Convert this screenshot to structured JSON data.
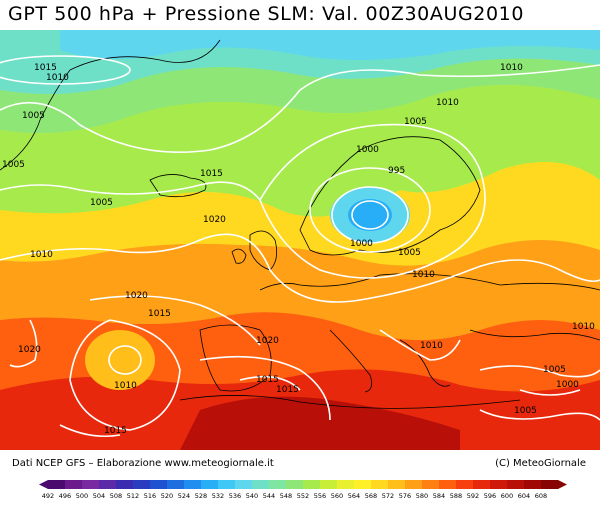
{
  "title": "GPT 500 hPa + Pressione SLM: Val. 00Z30AUG2010",
  "footer": {
    "left": "Dati NCEP GFS – Elaborazione www.meteogiornale.it",
    "right": "(C) MeteoGiornale"
  },
  "isobar_labels": [
    "1015",
    "1010",
    "1005",
    "1005",
    "1015",
    "1005",
    "1020",
    "1010",
    "1010",
    "1010",
    "1005",
    "1000",
    "995",
    "1000",
    "1005",
    "1010",
    "1020",
    "1015",
    "1020",
    "1010",
    "1020",
    "1015",
    "1015",
    "1010",
    "1010",
    "1005",
    "1000",
    "1005",
    "1015"
  ],
  "colorbar": {
    "ticks": [
      "492",
      "496",
      "500",
      "504",
      "508",
      "512",
      "516",
      "520",
      "524",
      "528",
      "532",
      "536",
      "540",
      "544",
      "548",
      "552",
      "556",
      "560",
      "564",
      "568",
      "572",
      "576",
      "580",
      "584",
      "588",
      "592",
      "596",
      "600",
      "604",
      "608"
    ],
    "colors": [
      "#4b0b6e",
      "#6a1a8a",
      "#7a2aa0",
      "#5b2aa8",
      "#3a2cb0",
      "#2a3cc0",
      "#1f52d0",
      "#1f6ee0",
      "#1f8ef0",
      "#27aef6",
      "#3fc8f6",
      "#5ed6ee",
      "#6fe0c8",
      "#7ee6a0",
      "#8ee676",
      "#a6ea4c",
      "#c8ee38",
      "#e8f030",
      "#fff02a",
      "#ffd820",
      "#ffbe1a",
      "#ffa016",
      "#ff8012",
      "#ff6010",
      "#f8400e",
      "#e8280c",
      "#d0180a",
      "#b81008",
      "#a00806",
      "#880404"
    ]
  }
}
